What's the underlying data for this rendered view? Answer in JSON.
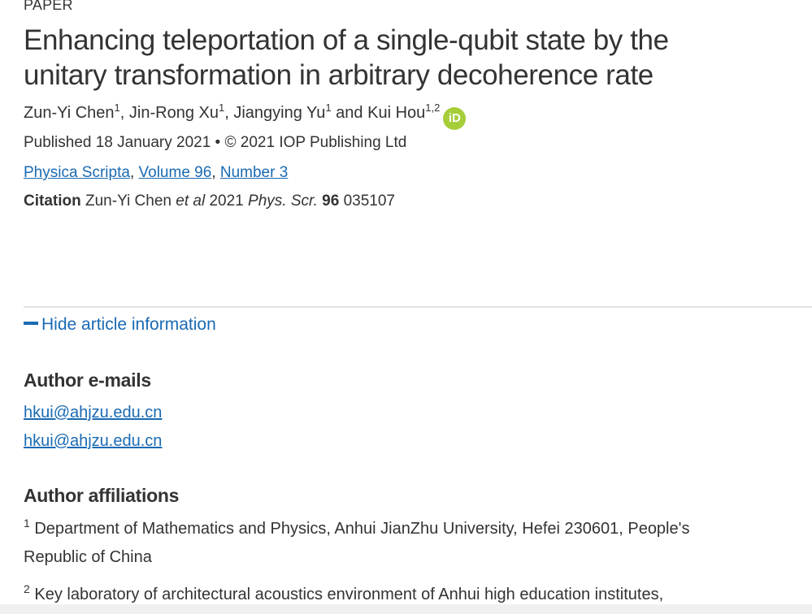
{
  "article_type": "PAPER",
  "title_line1": "Enhancing teleportation of a single-qubit state by the",
  "title_line2": "unitary transformation in arbitrary decoherence rate",
  "authors": [
    {
      "name": "Zun-Yi Chen",
      "aff": "1",
      "sep": ", "
    },
    {
      "name": "Jin-Rong Xu",
      "aff": "1",
      "sep": ", "
    },
    {
      "name": "Jiangying Yu",
      "aff": "1",
      "sep": " and "
    },
    {
      "name": "Kui Hou",
      "aff": "1,2",
      "sep": ""
    }
  ],
  "orcid_icon": "iD",
  "orcid_color": "#a6ce39",
  "published": "Published 18 January 2021 • © 2021 IOP Publishing Ltd",
  "journal_links": {
    "journal": "Physica Scripta",
    "volume": "Volume 96",
    "number": "Number 3",
    "sep": ", "
  },
  "citation": {
    "label": "Citation",
    "authors": "Zun-Yi Chen",
    "etal": "et al",
    "year": "2021",
    "journal": "Phys. Scr.",
    "volume": "96",
    "article": "035107"
  },
  "toggle_label": "Hide article information",
  "emails_heading": "Author e-mails",
  "emails": [
    "hkui@ahjzu.edu.cn",
    "hkui@ahjzu.edu.cn"
  ],
  "affiliations_heading": "Author affiliations",
  "affiliations": [
    {
      "num": "1",
      "line1": "Department of Mathematics and Physics, Anhui JianZhu University, Hefei 230601, People's",
      "line2": "Republic of China"
    },
    {
      "num": "2",
      "line1": "Key laboratory of architectural acoustics environment of Anhui high education institutes,"
    }
  ],
  "link_color": "#1a6ab3"
}
